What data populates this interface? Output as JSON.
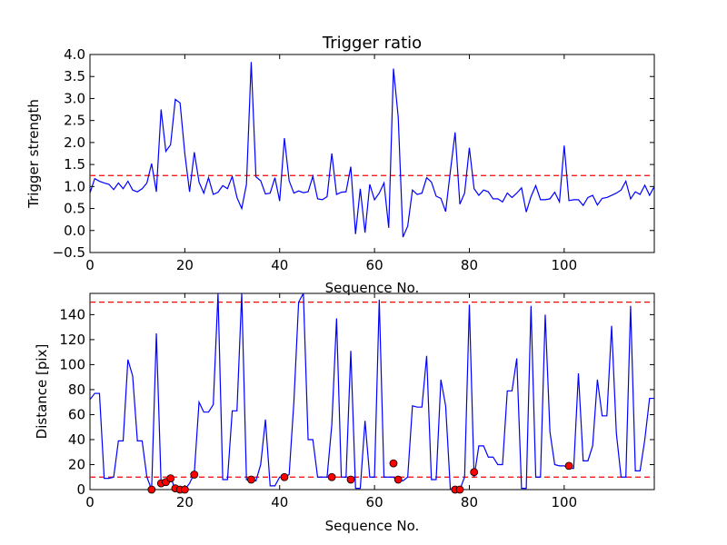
{
  "chart_data": [
    {
      "type": "line",
      "title": "Trigger ratio",
      "xlabel": "Sequence No.",
      "ylabel": "Trigger strength",
      "xlim": [
        0,
        119
      ],
      "ylim": [
        -0.5,
        4.0
      ],
      "x_ticks": [
        0,
        20,
        40,
        60,
        80,
        100
      ],
      "y_ticks": [
        -0.5,
        0.0,
        0.5,
        1.0,
        1.5,
        2.0,
        2.5,
        3.0,
        3.5,
        4.0
      ],
      "y_tick_labels": [
        "−0.5",
        "0.0",
        "0.5",
        "1.0",
        "1.5",
        "2.0",
        "2.5",
        "3.0",
        "3.5",
        "4.0"
      ],
      "grid": false,
      "line_color": "#0000ff",
      "threshold_color": "#ff0000",
      "thresholds": [
        1.25
      ],
      "series": [
        {
          "values": [
            0.85,
            1.18,
            1.12,
            1.08,
            1.05,
            0.93,
            1.08,
            0.95,
            1.12,
            0.92,
            0.88,
            0.95,
            1.08,
            1.52,
            0.88,
            2.75,
            1.8,
            1.95,
            2.98,
            2.9,
            1.75,
            0.88,
            1.78,
            1.1,
            0.85,
            1.2,
            0.82,
            0.87,
            1.02,
            0.95,
            1.23,
            0.75,
            0.5,
            1.05,
            3.83,
            1.22,
            1.13,
            0.83,
            0.85,
            1.2,
            0.67,
            2.1,
            1.13,
            0.85,
            0.9,
            0.86,
            0.88,
            1.23,
            0.72,
            0.7,
            0.77,
            1.75,
            0.82,
            0.87,
            0.88,
            1.45,
            -0.08,
            0.95,
            -0.05,
            1.05,
            0.7,
            0.85,
            1.08,
            0.06,
            3.68,
            2.58,
            -0.15,
            0.1,
            0.92,
            0.82,
            0.85,
            1.2,
            1.1,
            0.78,
            0.73,
            0.43,
            1.35,
            2.23,
            0.6,
            0.85,
            1.88,
            0.95,
            0.8,
            0.92,
            0.88,
            0.72,
            0.72,
            0.65,
            0.85,
            0.75,
            0.85,
            0.97,
            0.42,
            0.77,
            1.02,
            0.7,
            0.7,
            0.72,
            0.87,
            0.65,
            1.93,
            0.68,
            0.7,
            0.7,
            0.57,
            0.75,
            0.8,
            0.58,
            0.73,
            0.75,
            0.8,
            0.85,
            0.92,
            1.12,
            0.72,
            0.88,
            0.82,
            1.03,
            0.8,
            1.0
          ]
        }
      ]
    },
    {
      "type": "line",
      "title": "",
      "xlabel": "Sequence No.",
      "ylabel": "Distance [pix]",
      "xlim": [
        0,
        119
      ],
      "ylim": [
        0,
        157
      ],
      "x_ticks": [
        0,
        20,
        40,
        60,
        80,
        100
      ],
      "y_ticks": [
        0,
        20,
        40,
        60,
        80,
        100,
        120,
        140
      ],
      "grid": false,
      "line_color": "#0000ff",
      "threshold_color": "#ff0000",
      "marker_color": "#ff0000",
      "thresholds": [
        10,
        150
      ],
      "series": [
        {
          "values": [
            72,
            77,
            77,
            9,
            9,
            10,
            39,
            39,
            104,
            91,
            39,
            39,
            10,
            0,
            125,
            5,
            6,
            10,
            0,
            0,
            0,
            5,
            13,
            70,
            62,
            62,
            68,
            157,
            8,
            8,
            63,
            63,
            157,
            8,
            7,
            7,
            20,
            56,
            3,
            3,
            10,
            10,
            12,
            70,
            150,
            157,
            40,
            40,
            10,
            10,
            10,
            52,
            137,
            10,
            10,
            111,
            1,
            1,
            55,
            10,
            10,
            152,
            10,
            10,
            10,
            7,
            7,
            10,
            67,
            66,
            66,
            107,
            8,
            8,
            88,
            67,
            0,
            0,
            0,
            10,
            148,
            10,
            35,
            35,
            26,
            26,
            20,
            20,
            79,
            79,
            105,
            1,
            1,
            147,
            10,
            10,
            140,
            46,
            20,
            19,
            19,
            17,
            17,
            93,
            23,
            23,
            35,
            88,
            59,
            59,
            131,
            45,
            10,
            10,
            147,
            15,
            15,
            40,
            73,
            73
          ]
        },
        {
          "name": "",
          "points": [
            [
              13,
              0
            ],
            [
              15,
              5
            ],
            [
              16,
              6
            ],
            [
              17,
              9
            ],
            [
              18,
              1
            ],
            [
              19,
              0
            ],
            [
              20,
              0
            ],
            [
              22,
              12
            ],
            [
              34,
              8
            ],
            [
              41,
              10
            ],
            [
              51,
              10
            ],
            [
              55,
              8
            ],
            [
              64,
              21
            ],
            [
              65,
              8
            ],
            [
              77,
              0
            ],
            [
              78,
              0
            ],
            [
              81,
              14
            ],
            [
              101,
              19
            ]
          ]
        }
      ]
    }
  ]
}
